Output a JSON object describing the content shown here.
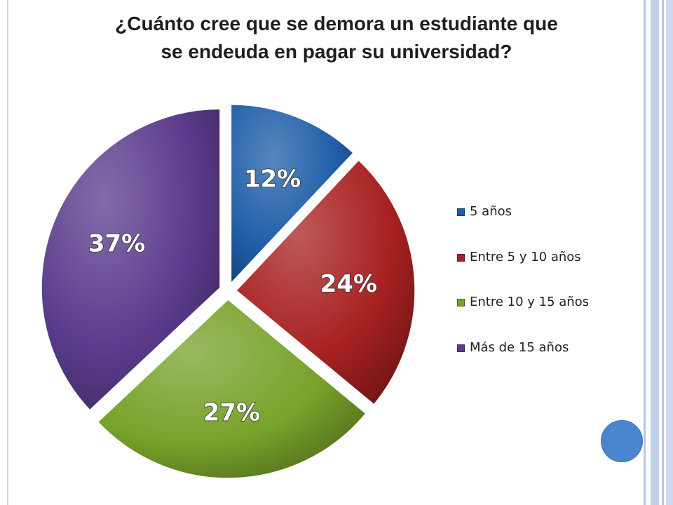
{
  "title": {
    "line1": "¿Cuánto cree que se demora un estudiante que",
    "line2": "se endeuda en pagar su universidad?"
  },
  "chart_data": {
    "type": "pie",
    "title": "¿Cuánto cree que se demora un estudiante que se endeuda en pagar su universidad?",
    "legend_position": "right",
    "slices": [
      {
        "label": "5 años",
        "value": 12,
        "display": "12%",
        "color": "#1f5ea8",
        "exploded": true
      },
      {
        "label": "Entre 5 y 10 años",
        "value": 24,
        "display": "24%",
        "color": "#a82121",
        "exploded": true
      },
      {
        "label": "Entre 10 y 15 años",
        "value": 27,
        "display": "27%",
        "color": "#77a22a",
        "exploded": true
      },
      {
        "label": "Más de 15 años",
        "value": 37,
        "display": "37%",
        "color": "#5a3b8c",
        "exploded": true
      }
    ]
  }
}
